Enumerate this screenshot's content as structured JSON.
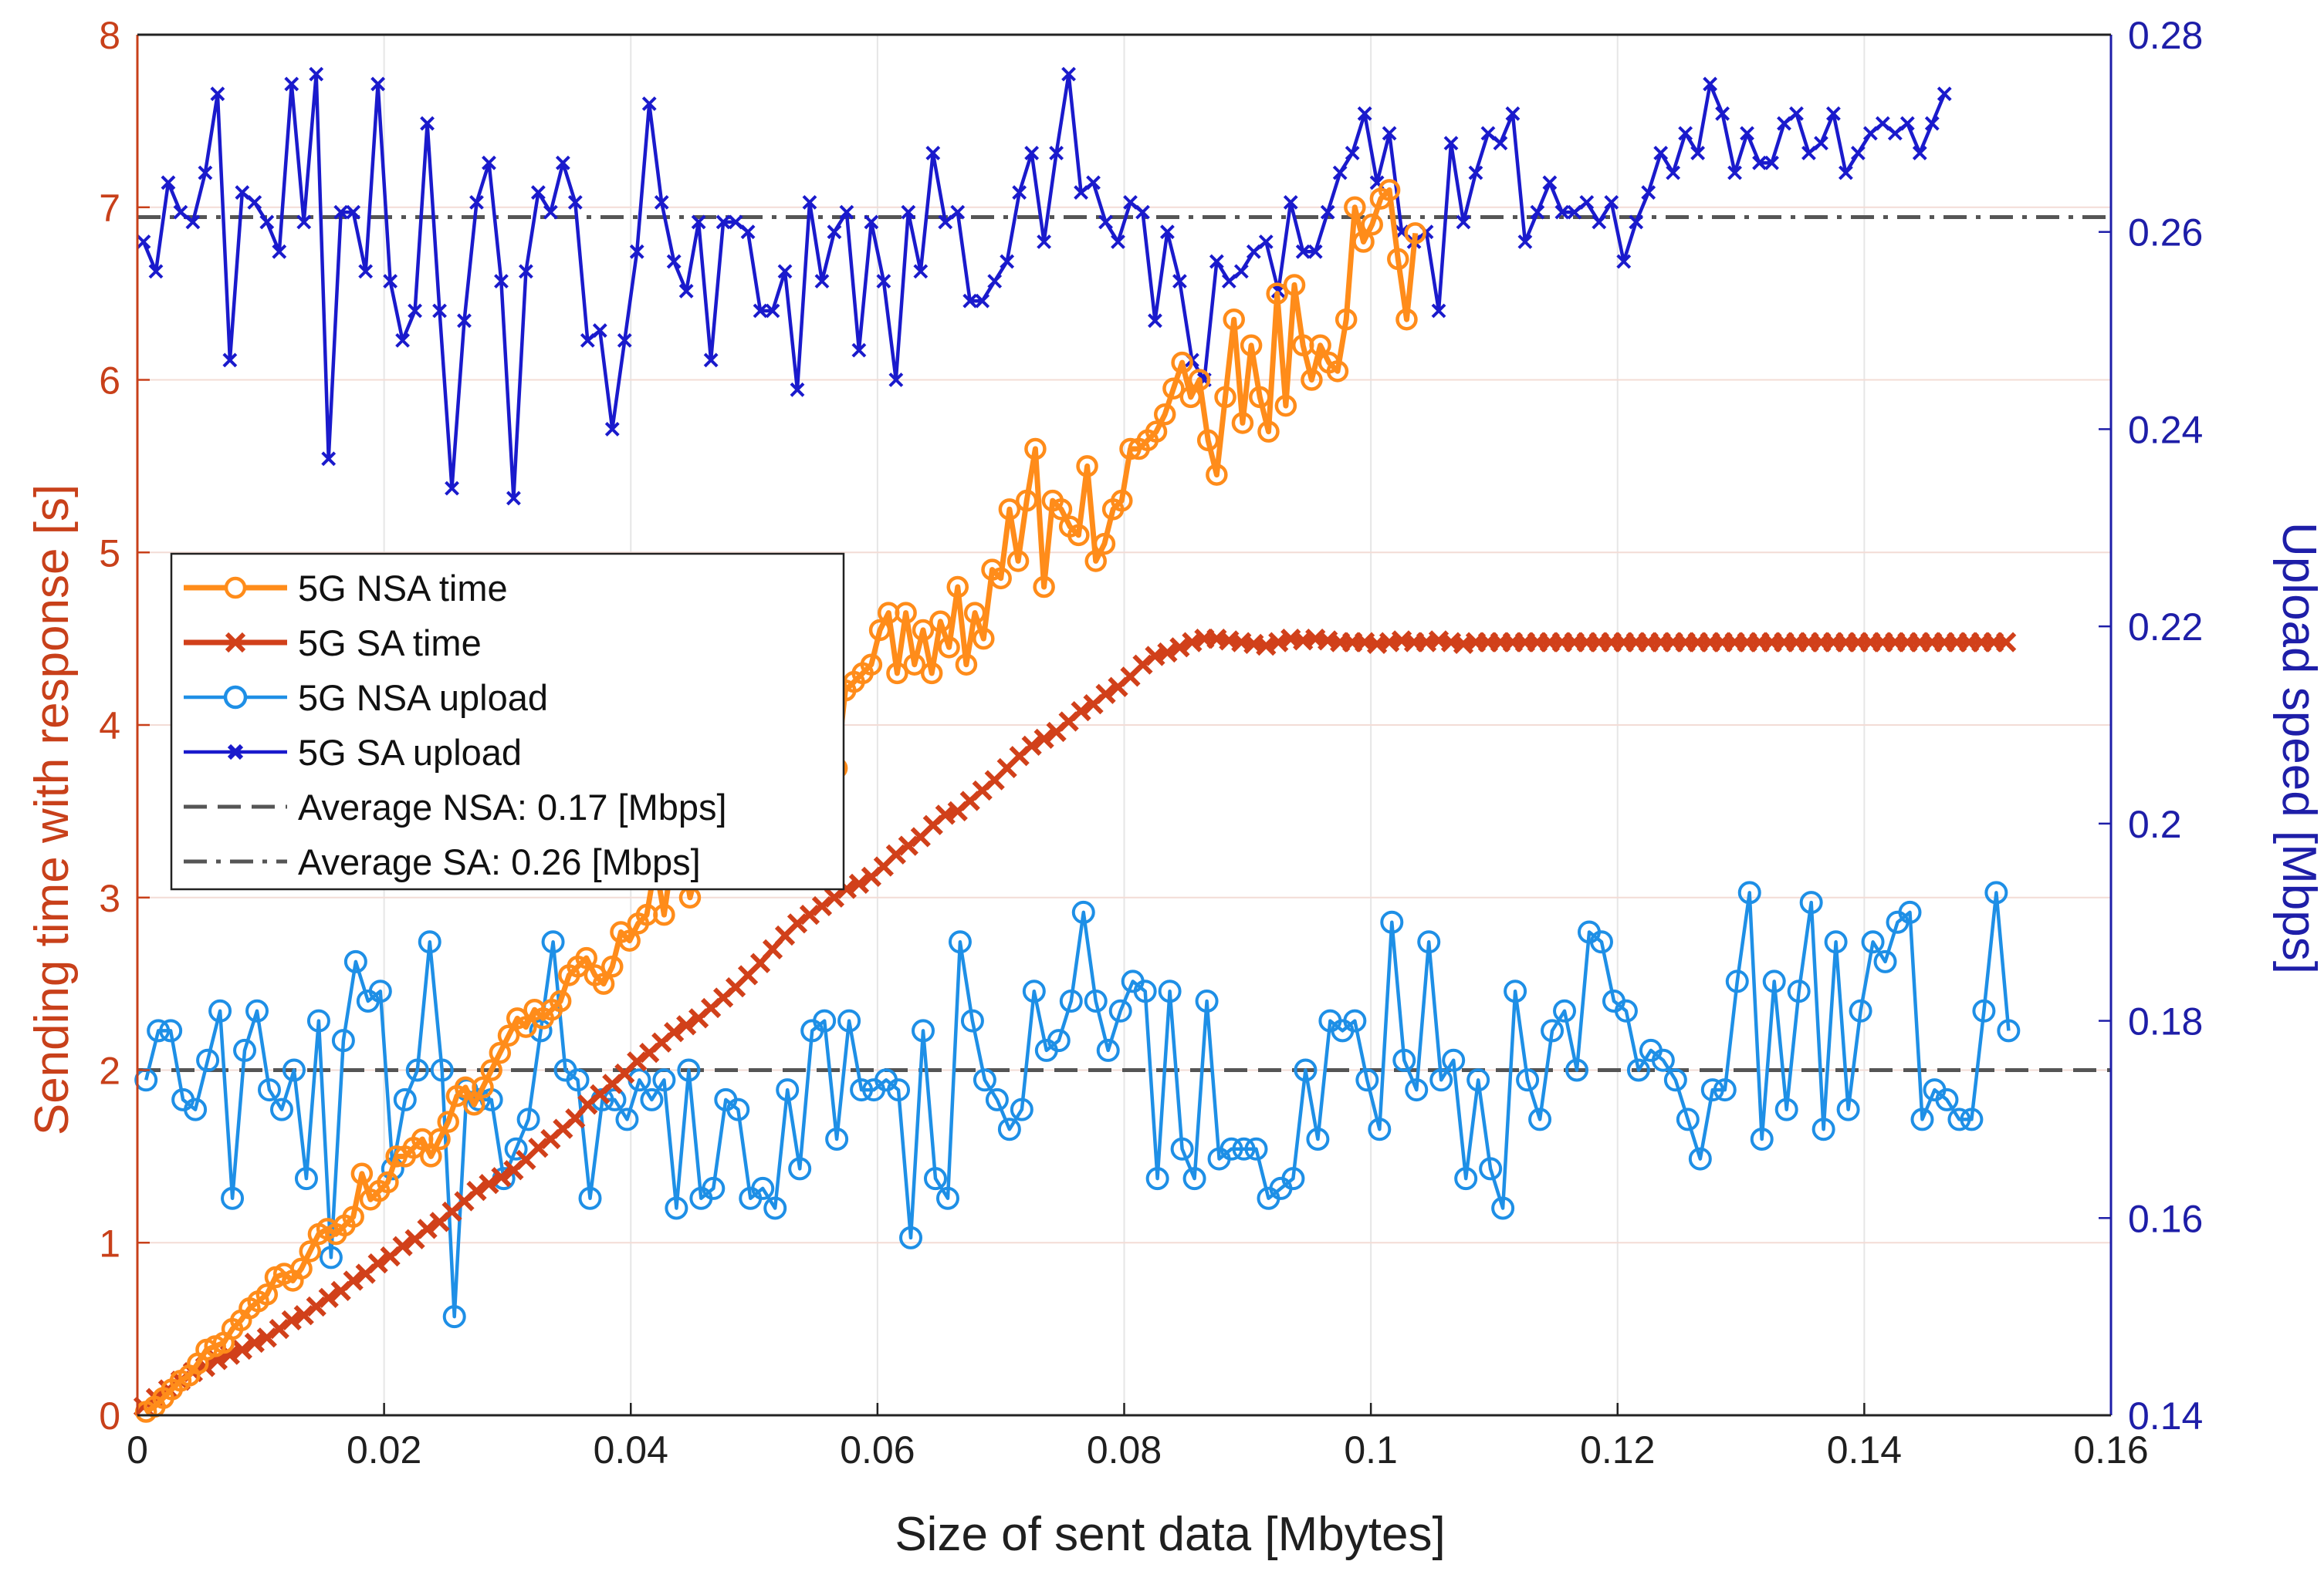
{
  "chart_data": {
    "type": "line",
    "title": "",
    "xlabel": "Size of sent data [Mbytes]",
    "ylabel_left": "Sending time with response [s]",
    "ylabel_right": "Upload speed [Mbps]",
    "xlim": [
      0,
      0.16
    ],
    "ylim_left": [
      0,
      8
    ],
    "ylim_right": [
      0.14,
      0.28
    ],
    "x_ticks": [
      "0",
      "0.02",
      "0.04",
      "0.06",
      "0.08",
      "0.1",
      "0.12",
      "0.14",
      "0.16"
    ],
    "y_left_ticks": [
      "0",
      "1",
      "2",
      "3",
      "4",
      "5",
      "6",
      "7",
      "8"
    ],
    "y_right_ticks": [
      "0.14",
      "0.16",
      "0.18",
      "0.2",
      "0.22",
      "0.24",
      "0.26",
      "0.28"
    ],
    "grid": true,
    "legend_position": "center-left",
    "legend": [
      "5G NSA time",
      "5G SA time",
      "5G NSA upload",
      "5G SA upload",
      "Average NSA: 0.17 [Mbps]",
      "Average SA: 0.26 [Mbps]"
    ],
    "colors": {
      "nsa_time": "#ff8c1a",
      "sa_time": "#d1401a",
      "nsa_upload": "#1e8fe6",
      "sa_upload": "#1a1acc",
      "avg_line": "#555555",
      "left_axis": "#c8401a",
      "right_axis": "#1e1ea8",
      "grid": "#e6e6e6"
    },
    "series": [
      {
        "name": "5G NSA time",
        "axis": "left",
        "marker": "circle",
        "x_start": 0.0007,
        "x_step": 0.0007,
        "values": [
          0.02,
          0.05,
          0.1,
          0.15,
          0.2,
          0.23,
          0.3,
          0.38,
          0.4,
          0.42,
          0.5,
          0.55,
          0.62,
          0.66,
          0.7,
          0.8,
          0.82,
          0.78,
          0.85,
          0.95,
          1.05,
          1.08,
          1.05,
          1.1,
          1.15,
          1.4,
          1.25,
          1.3,
          1.35,
          1.5,
          1.5,
          1.55,
          1.6,
          1.5,
          1.6,
          1.7,
          1.85,
          1.9,
          1.8,
          1.9,
          2.0,
          2.1,
          2.2,
          2.3,
          2.25,
          2.35,
          2.3,
          2.35,
          2.4,
          2.55,
          2.6,
          2.65,
          2.55,
          2.5,
          2.6,
          2.8,
          2.75,
          2.85,
          2.9,
          3.2,
          2.9,
          3.25,
          3.3,
          3.0,
          3.2,
          3.3,
          3.4,
          3.4,
          3.2,
          3.4,
          3.35,
          3.25,
          3.4,
          3.5,
          3.6,
          3.55,
          3.75,
          4.05,
          3.65,
          3.85,
          3.75,
          4.2,
          4.25,
          4.3,
          4.35,
          4.55,
          4.65,
          4.3,
          4.65,
          4.35,
          4.55,
          4.3,
          4.6,
          4.45,
          4.8,
          4.35,
          4.65,
          4.5,
          4.9,
          4.85,
          5.25,
          4.95,
          5.3,
          5.6,
          4.8,
          5.3,
          5.25,
          5.15,
          5.1,
          5.5,
          4.95,
          5.05,
          5.25,
          5.3,
          5.6,
          5.6,
          5.65,
          5.7,
          5.8,
          5.95,
          6.1,
          5.9,
          6.0,
          5.65,
          5.45,
          5.9,
          6.35,
          5.75,
          6.2,
          5.9,
          5.7,
          6.5,
          5.85,
          6.55,
          6.2,
          6.0,
          6.2,
          6.1,
          6.05,
          6.35,
          7.0,
          6.8,
          6.9,
          7.05,
          7.1,
          6.7,
          6.35,
          6.85
        ]
      },
      {
        "name": "5G SA time",
        "axis": "left",
        "marker": "x",
        "x_start": 0.0005,
        "x_step": 0.001,
        "values": [
          0.05,
          0.1,
          0.15,
          0.2,
          0.25,
          0.28,
          0.32,
          0.35,
          0.38,
          0.42,
          0.45,
          0.5,
          0.55,
          0.58,
          0.63,
          0.68,
          0.72,
          0.78,
          0.82,
          0.88,
          0.92,
          0.98,
          1.02,
          1.08,
          1.12,
          1.18,
          1.24,
          1.3,
          1.34,
          1.38,
          1.42,
          1.48,
          1.55,
          1.6,
          1.66,
          1.72,
          1.8,
          1.86,
          1.92,
          1.98,
          2.05,
          2.1,
          2.16,
          2.22,
          2.26,
          2.3,
          2.36,
          2.42,
          2.48,
          2.55,
          2.62,
          2.7,
          2.78,
          2.85,
          2.9,
          2.95,
          3.0,
          3.05,
          3.08,
          3.12,
          3.18,
          3.25,
          3.3,
          3.35,
          3.42,
          3.48,
          3.5,
          3.56,
          3.62,
          3.68,
          3.75,
          3.82,
          3.88,
          3.92,
          3.96,
          4.02,
          4.08,
          4.12,
          4.18,
          4.22,
          4.28,
          4.35,
          4.4,
          4.42,
          4.45,
          4.48,
          4.5,
          4.5,
          4.49,
          4.48,
          4.47,
          4.46,
          4.48,
          4.5,
          4.49,
          4.5,
          4.49,
          4.48,
          4.48,
          4.48,
          4.47,
          4.48,
          4.49,
          4.48,
          4.48,
          4.49,
          4.48,
          4.47,
          4.48,
          4.48,
          4.48,
          4.48,
          4.48,
          4.48,
          4.48,
          4.48,
          4.48,
          4.48,
          4.48,
          4.48,
          4.48,
          4.48,
          4.48,
          4.48,
          4.48,
          4.48,
          4.48,
          4.48,
          4.48,
          4.48,
          4.48,
          4.48,
          4.48,
          4.48,
          4.48,
          4.48,
          4.48,
          4.48,
          4.48,
          4.48,
          4.48,
          4.48,
          4.48,
          4.48,
          4.48,
          4.48,
          4.48,
          4.48,
          4.48,
          4.48,
          4.48,
          4.48
        ]
      },
      {
        "name": "5G NSA upload",
        "axis": "right",
        "marker": "circle",
        "x_start": 0.0007,
        "x_step": 0.001,
        "values": [
          0.174,
          0.179,
          0.179,
          0.172,
          0.171,
          0.176,
          0.181,
          0.162,
          0.177,
          0.181,
          0.173,
          0.171,
          0.175,
          0.164,
          0.18,
          0.156,
          0.178,
          0.186,
          0.182,
          0.183,
          0.165,
          0.172,
          0.175,
          0.188,
          0.175,
          0.15,
          0.173,
          0.172,
          0.172,
          0.164,
          0.167,
          0.17,
          0.179,
          0.188,
          0.175,
          0.174,
          0.162,
          0.172,
          0.172,
          0.17,
          0.174,
          0.172,
          0.174,
          0.161,
          0.175,
          0.162,
          0.163,
          0.172,
          0.171,
          0.162,
          0.163,
          0.161,
          0.173,
          0.165,
          0.179,
          0.18,
          0.168,
          0.18,
          0.173,
          0.173,
          0.174,
          0.173,
          0.158,
          0.179,
          0.164,
          0.162,
          0.188,
          0.18,
          0.174,
          0.172,
          0.169,
          0.171,
          0.183,
          0.177,
          0.178,
          0.182,
          0.191,
          0.182,
          0.177,
          0.181,
          0.184,
          0.183,
          0.164,
          0.183,
          0.167,
          0.164,
          0.182,
          0.166,
          0.167,
          0.167,
          0.167,
          0.162,
          0.163,
          0.164,
          0.175,
          0.168,
          0.18,
          0.179,
          0.18,
          0.174,
          0.169,
          0.19,
          0.176,
          0.173,
          0.188,
          0.174,
          0.176,
          0.164,
          0.174,
          0.165,
          0.161,
          0.183,
          0.174,
          0.17,
          0.179,
          0.181,
          0.175,
          0.189,
          0.188,
          0.182,
          0.181,
          0.175,
          0.177,
          0.176,
          0.174,
          0.17,
          0.166,
          0.173,
          0.173,
          0.184,
          0.193,
          0.168,
          0.184,
          0.171,
          0.183,
          0.192,
          0.169,
          0.188,
          0.171,
          0.181,
          0.188,
          0.186,
          0.19,
          0.191,
          0.17,
          0.173,
          0.172,
          0.17,
          0.17,
          0.181,
          0.193,
          0.179
        ]
      },
      {
        "name": "5G SA upload",
        "axis": "right",
        "marker": "x",
        "x_start": 0.0005,
        "x_step": 0.001,
        "values": [
          0.259,
          0.256,
          0.265,
          0.262,
          0.261,
          0.266,
          0.274,
          0.247,
          0.264,
          0.263,
          0.261,
          0.258,
          0.275,
          0.261,
          0.276,
          0.237,
          0.262,
          0.262,
          0.256,
          0.275,
          0.255,
          0.249,
          0.252,
          0.271,
          0.252,
          0.234,
          0.251,
          0.263,
          0.267,
          0.255,
          0.233,
          0.256,
          0.264,
          0.262,
          0.267,
          0.263,
          0.249,
          0.25,
          0.24,
          0.249,
          0.258,
          0.273,
          0.263,
          0.257,
          0.254,
          0.261,
          0.247,
          0.261,
          0.261,
          0.26,
          0.252,
          0.252,
          0.256,
          0.244,
          0.263,
          0.255,
          0.26,
          0.262,
          0.248,
          0.261,
          0.255,
          0.245,
          0.262,
          0.256,
          0.268,
          0.261,
          0.262,
          0.253,
          0.253,
          0.255,
          0.257,
          0.264,
          0.268,
          0.259,
          0.268,
          0.276,
          0.264,
          0.265,
          0.261,
          0.259,
          0.263,
          0.262,
          0.251,
          0.26,
          0.255,
          0.247,
          0.245,
          0.257,
          0.255,
          0.256,
          0.258,
          0.259,
          0.254,
          0.263,
          0.258,
          0.258,
          0.262,
          0.266,
          0.268,
          0.272,
          0.265,
          0.27,
          0.26,
          0.259,
          0.26,
          0.252,
          0.269,
          0.261,
          0.266,
          0.27,
          0.269,
          0.272,
          0.259,
          0.262,
          0.265,
          0.262,
          0.262,
          0.263,
          0.261,
          0.263,
          0.257,
          0.261,
          0.264,
          0.268,
          0.266,
          0.27,
          0.268,
          0.275,
          0.272,
          0.266,
          0.27,
          0.267,
          0.267,
          0.271,
          0.272,
          0.268,
          0.269,
          0.272,
          0.266,
          0.268,
          0.27,
          0.271,
          0.27,
          0.271,
          0.268,
          0.271,
          0.274
        ]
      }
    ],
    "reference_lines": [
      {
        "name": "Average NSA: 0.17 [Mbps]",
        "axis": "right",
        "value": 0.175,
        "style": "dashed"
      },
      {
        "name": "Average SA: 0.26 [Mbps]",
        "axis": "right",
        "value": 0.2615,
        "style": "dashdot"
      }
    ]
  }
}
